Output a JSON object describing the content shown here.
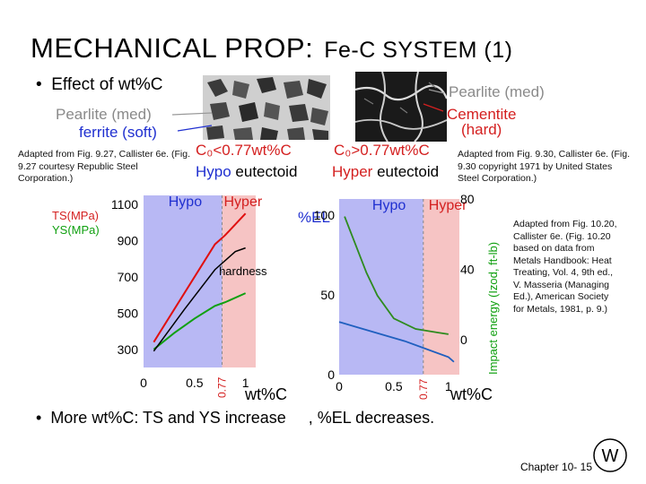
{
  "slide": {
    "title_main": "MECHANICAL PROP:",
    "title_sub": "Fe-C SYSTEM (1)",
    "bullet1": "Effect of wt%C",
    "bullet2_a": "More wt%C:  TS and YS increase",
    "bullet2_b": ", %EL decreases.",
    "footer": "Chapter 10-  15"
  },
  "micro_left": {
    "label_pearlite": "Pearlite (med)",
    "label_ferrite": "ferrite (soft)",
    "cond": "C₀<0.77wt%C",
    "type_hypo": "Hypo",
    "type_rest": " eutectoid"
  },
  "micro_right": {
    "label_pearlite": "Pearlite (med)",
    "label_cementite_1": "Cementite",
    "label_cementite_2": "(hard)",
    "cond": "C₀>0.77wt%C",
    "type_hyper": "Hyper",
    "type_rest": " eutectoid"
  },
  "credits": {
    "left": "Adapted from Fig. 9.27, Callister 6e. (Fig. 9.27 courtesy Republic Steel Corporation.)",
    "right": "Adapted from Fig. 9.30, Callister 6e. (Fig. 9.30 copyright 1971 by United States Steel Corporation.)",
    "side": "Adapted from Fig. 10.20, Callister 6e. (Fig. 10.20 based on data from Metals Handbook: Heat Treating, Vol. 4, 9th ed., V. Masseria (Managing Ed.), American Society for Metals, 1981, p. 9.)"
  },
  "colors": {
    "hypo_fill": "#b8b8f4",
    "hyper_fill": "#f6c4c4",
    "ts": "#e01010",
    "ys": "#10a010",
    "hardness": "#000000",
    "el": "#1f5fbf",
    "impact": "#2e8b1e",
    "hypo_text": "#2030d0",
    "hyper_text": "#d42020"
  },
  "chart_data": [
    {
      "type": "line",
      "region_labels": [
        "Hypo",
        "Hyper"
      ],
      "ylabel_ts": "TS(MPa)",
      "ylabel_ys": "YS(MPa)",
      "xlabel": "wt%C",
      "xlim": [
        0,
        1.1
      ],
      "ylim": [
        200,
        1150
      ],
      "x_ticks": [
        0,
        0.5,
        1
      ],
      "x_tick_labels": [
        "0",
        "0.5",
        "1"
      ],
      "y_ticks": [
        300,
        500,
        700,
        900,
        1100
      ],
      "y_tick_labels": [
        "300",
        "500",
        "700",
        "900",
        "1100"
      ],
      "eutectoid_x": 0.77,
      "eutectoid_label": "0.77",
      "annotation": "hardness",
      "series": [
        {
          "name": "TS",
          "x": [
            0.1,
            0.3,
            0.5,
            0.7,
            0.8,
            1.0
          ],
          "y": [
            340,
            520,
            700,
            880,
            930,
            1050
          ]
        },
        {
          "name": "YS",
          "x": [
            0.1,
            0.3,
            0.5,
            0.7,
            0.8,
            1.0
          ],
          "y": [
            300,
            390,
            470,
            540,
            560,
            610
          ]
        },
        {
          "name": "hardness",
          "x": [
            0.1,
            0.4,
            0.7,
            0.9,
            1.0
          ],
          "y": [
            290,
            520,
            740,
            840,
            860
          ]
        }
      ]
    },
    {
      "type": "line",
      "region_labels": [
        "Hypo",
        "Hyper"
      ],
      "ylabel_left": "%EL",
      "ylabel_right": "Impact energy (Izod, ft-lb)",
      "xlabel": "wt%C",
      "xlim": [
        0,
        1.1
      ],
      "ylim_left": [
        0,
        110
      ],
      "ylim_right": [
        -20,
        80
      ],
      "x_ticks": [
        0,
        0.5,
        1
      ],
      "x_tick_labels": [
        "0",
        "0.5",
        "1"
      ],
      "y_ticks_left": [
        0,
        50,
        100
      ],
      "y_tick_labels_left": [
        "0",
        "50",
        "100"
      ],
      "y_ticks_right": [
        0,
        40,
        80
      ],
      "y_tick_labels_right": [
        "0",
        "40",
        "80"
      ],
      "eutectoid_x": 0.77,
      "eutectoid_label": "0.77",
      "series": [
        {
          "name": "Impact energy",
          "axis": "right",
          "x": [
            0.05,
            0.15,
            0.25,
            0.35,
            0.5,
            0.7,
            0.9,
            1.0
          ],
          "y": [
            70,
            54,
            38,
            25,
            12,
            6,
            4,
            3
          ]
        },
        {
          "name": "%EL",
          "axis": "left",
          "x": [
            0.0,
            0.2,
            0.4,
            0.6,
            0.8,
            1.0,
            1.05
          ],
          "y": [
            33,
            29,
            25,
            21,
            16,
            11,
            8
          ]
        }
      ]
    }
  ]
}
